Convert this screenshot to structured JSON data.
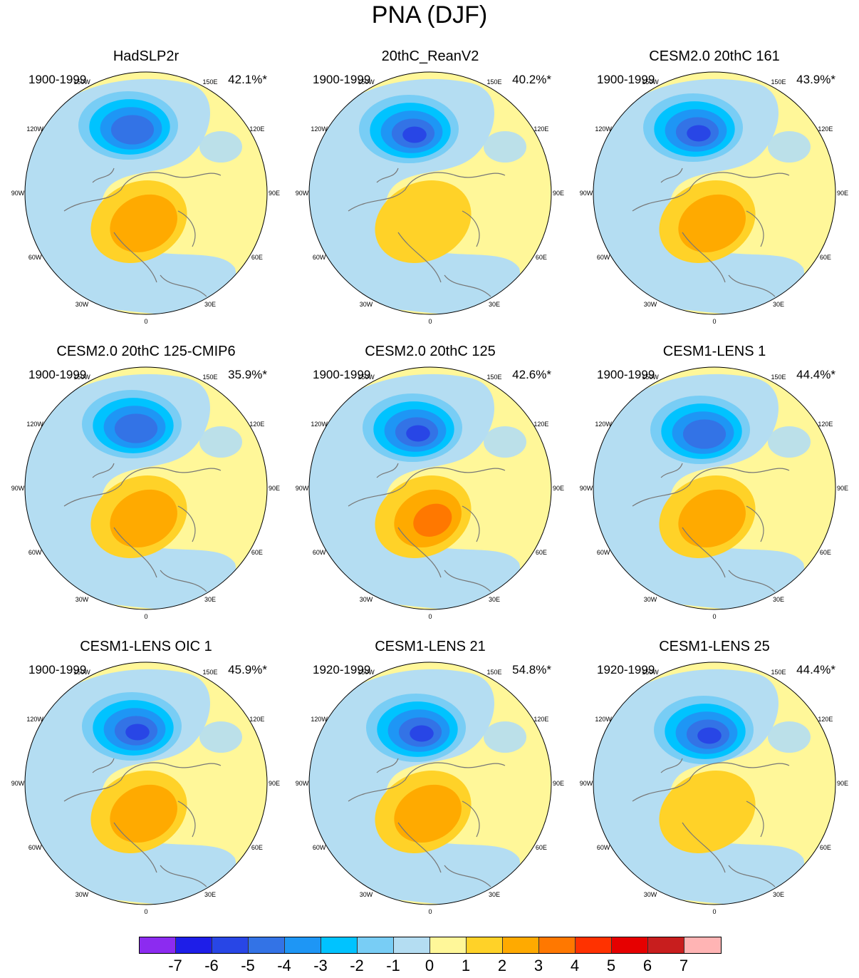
{
  "title": "PNA (DJF)",
  "colors": {
    "ocean_neg": "#b4ddf2",
    "pos1": "#fff799",
    "coast": "#777777"
  },
  "degree_labels": [
    "180",
    "150E",
    "120E",
    "90E",
    "60E",
    "30E",
    "0",
    "30W",
    "60W",
    "90W",
    "120W",
    "150W"
  ],
  "panels": [
    {
      "title": "HadSLP2r",
      "period": "1900-1999",
      "pct": "42.1%*"
    },
    {
      "title": "20thC_ReanV2",
      "period": "1900-1999",
      "pct": "40.2%*"
    },
    {
      "title": "CESM2.0 20thC 161",
      "period": "1900-1999",
      "pct": "43.9%*"
    },
    {
      "title": "CESM2.0 20thC 125-CMIP6",
      "period": "1900-1999",
      "pct": "35.9%*"
    },
    {
      "title": "CESM2.0 20thC 125",
      "period": "1900-1999",
      "pct": "42.6%*"
    },
    {
      "title": "CESM1-LENS 1",
      "period": "1900-1999",
      "pct": "44.4%*"
    },
    {
      "title": "CESM1-LENS OIC 1",
      "period": "1900-1999",
      "pct": "45.9%*"
    },
    {
      "title": "CESM1-LENS 21",
      "period": "1920-1999",
      "pct": "54.8%*"
    },
    {
      "title": "CESM1-LENS 25",
      "period": "1920-1999",
      "pct": "44.4%*"
    }
  ],
  "colorbar": {
    "colors": [
      "#8c2bf0",
      "#1e1ee8",
      "#2846e6",
      "#3373e6",
      "#1e96f5",
      "#00c3ff",
      "#78cdf5",
      "#b4ddf2",
      "#fff799",
      "#ffd228",
      "#ffaa00",
      "#ff7800",
      "#ff3200",
      "#e60000",
      "#c81e1e",
      "#ffb4b4"
    ],
    "labels": [
      "-7",
      "-6",
      "-5",
      "-4",
      "-3",
      "-2",
      "-1",
      "0",
      "1",
      "2",
      "3",
      "4",
      "5",
      "6",
      "7"
    ]
  }
}
